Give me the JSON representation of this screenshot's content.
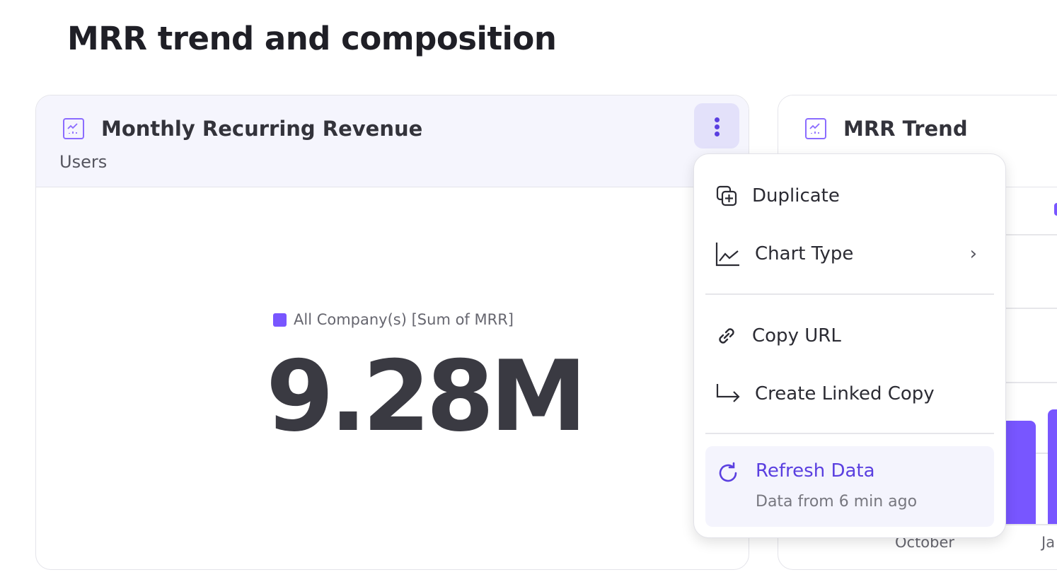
{
  "page": {
    "title": "MRR trend and composition"
  },
  "card1": {
    "title": "Monthly Recurring Revenue",
    "subtitle": "Users",
    "legend": "All Company(s) [Sum of MRR]",
    "value": "9.28M",
    "icon": "chart-icon"
  },
  "card2": {
    "title": "MRR Trend",
    "icon": "chart-icon",
    "x_labels": [
      "October",
      "Ja"
    ]
  },
  "menu": {
    "items": [
      {
        "label": "Duplicate",
        "icon": "duplicate-icon"
      },
      {
        "label": "Chart Type",
        "icon": "line-chart-icon",
        "submenu": true
      },
      {
        "label": "Copy URL",
        "icon": "link-icon"
      },
      {
        "label": "Create Linked Copy",
        "icon": "linked-copy-arrow-icon"
      }
    ],
    "refresh": {
      "label": "Refresh Data",
      "sub": "Data from 6 min ago",
      "icon": "refresh-icon"
    }
  },
  "colors": {
    "accent": "#7856FF",
    "accent_text": "#5A3FE0",
    "header_bg": "#F5F5FD"
  }
}
